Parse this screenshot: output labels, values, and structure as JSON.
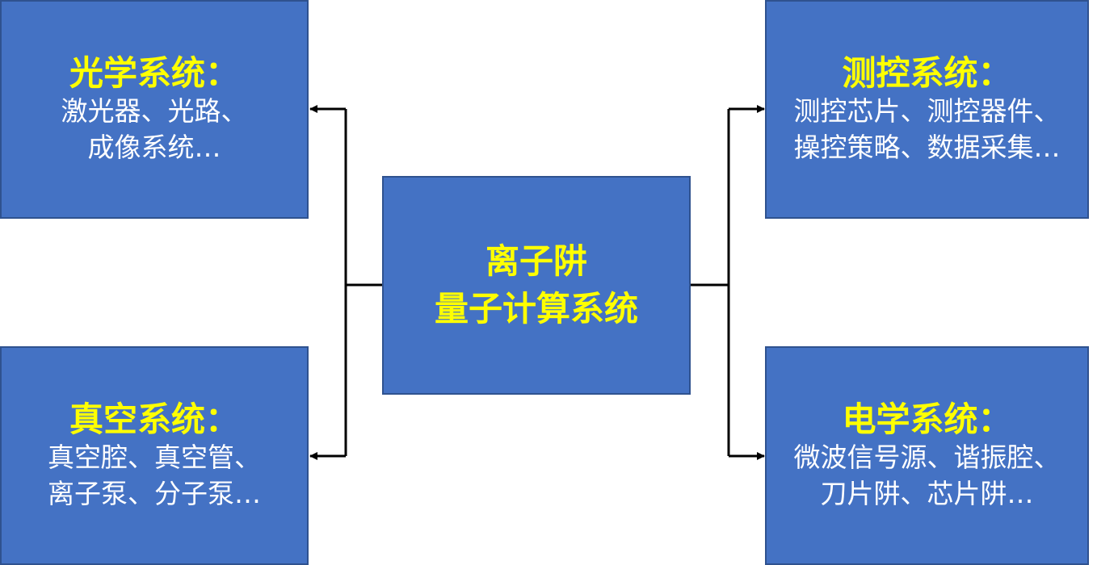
{
  "center": {
    "line1": "离子阱",
    "line2": "量子计算系统"
  },
  "optics": {
    "title": "光学系统：",
    "line1": "激光器、光路、",
    "line2": "成像系统…"
  },
  "vacuum": {
    "title": "真空系统：",
    "line1": "真空腔、真空管、",
    "line2": "离子泵、分子泵…"
  },
  "control": {
    "title": "测控系统：",
    "line1": "测控芯片、测控器件、",
    "line2": "操控策略、数据采集…"
  },
  "electrical": {
    "title": "电学系统：",
    "line1": "微波信号源、谐振腔、",
    "line2": "刀片阱、芯片阱…"
  },
  "colors": {
    "box_fill": "#4472c4",
    "title_text": "#ffff00",
    "body_text": "#ffffff",
    "connector": "#000000"
  }
}
